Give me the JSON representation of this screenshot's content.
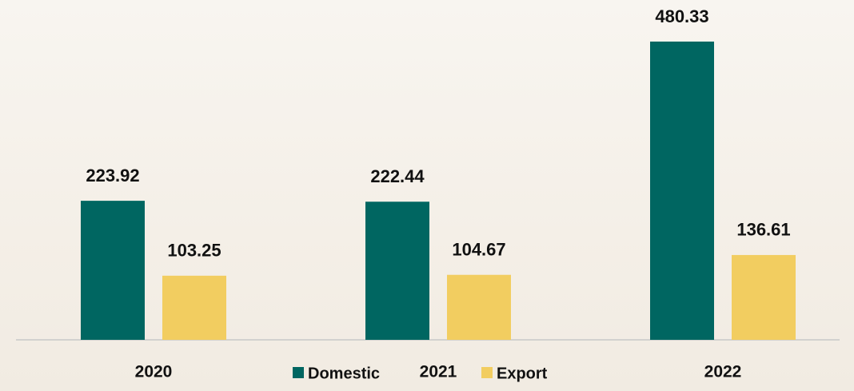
{
  "chart_data": {
    "type": "bar",
    "categories": [
      "2020",
      "2021",
      "2022"
    ],
    "series": [
      {
        "name": "Domestic",
        "color": "#006661",
        "values": [
          223.92,
          222.44,
          480.33
        ]
      },
      {
        "name": "Export",
        "color": "#f2cd60",
        "values": [
          103.25,
          104.67,
          136.61
        ]
      }
    ],
    "grid": false,
    "legend": "bottom"
  }
}
